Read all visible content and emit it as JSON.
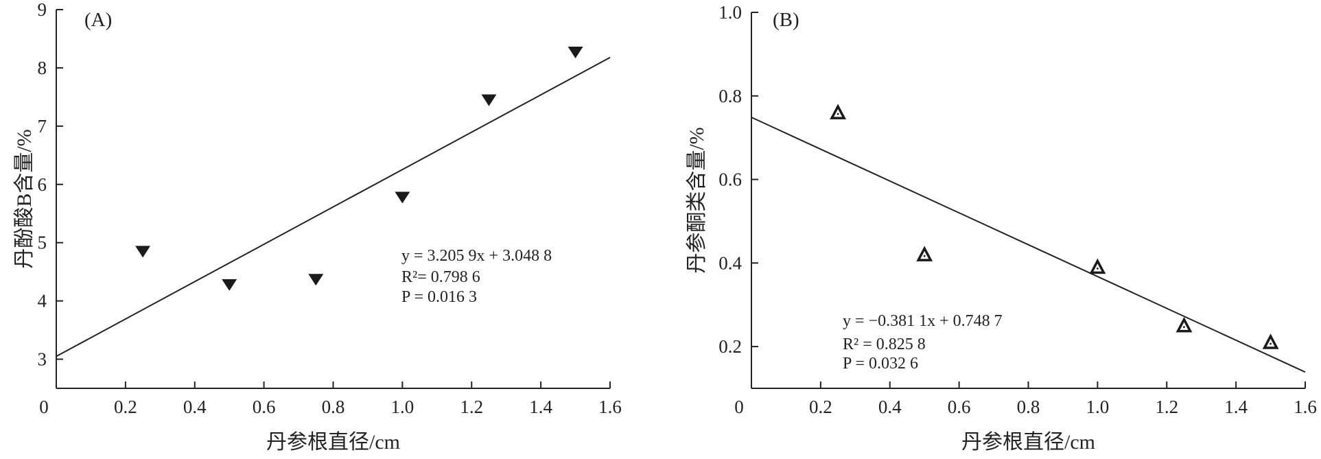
{
  "chart_data": [
    {
      "panel_label": "(A)",
      "type": "scatter",
      "marker": "filled-triangle-down",
      "xlabel": "丹参根直径/cm",
      "ylabel": "丹酚酸B含量/%",
      "xlim": [
        0,
        1.6
      ],
      "ylim": [
        2.5,
        9
      ],
      "xticks": [
        "0",
        "0.2",
        "0.4",
        "0.6",
        "0.8",
        "1.0",
        "1.2",
        "1.4",
        "1.6"
      ],
      "yticks": [
        "3",
        "4",
        "5",
        "6",
        "7",
        "8",
        "9"
      ],
      "series": [
        {
          "x": [
            0.25,
            0.5,
            0.75,
            1.0,
            1.25,
            1.5
          ],
          "y": [
            4.85,
            4.28,
            4.37,
            5.78,
            7.45,
            8.27
          ]
        }
      ],
      "fit": {
        "slope": 3.2059,
        "intercept": 3.0488,
        "x_range": [
          0,
          1.6
        ]
      },
      "equation": [
        "y = 3.205 9x + 3.048 8",
        "R²= 0.798 6",
        "P = 0.016 3"
      ]
    },
    {
      "panel_label": "(B)",
      "type": "scatter",
      "marker": "hollow-triangle-up",
      "xlabel": "丹参根直径/cm",
      "ylabel": "丹参酮类含量/%",
      "xlim": [
        0,
        1.6
      ],
      "ylim": [
        0.1,
        1.0
      ],
      "xticks": [
        "0",
        "0.2",
        "0.4",
        "0.6",
        "0.8",
        "1.0",
        "1.2",
        "1.4",
        "1.6"
      ],
      "yticks": [
        "0.2",
        "0.4",
        "0.6",
        "0.8",
        "1.0"
      ],
      "series": [
        {
          "x": [
            0.25,
            0.5,
            1.0,
            1.25,
            1.5
          ],
          "y": [
            0.76,
            0.42,
            0.39,
            0.25,
            0.21
          ]
        }
      ],
      "fit": {
        "slope": -0.3811,
        "intercept": 0.7487,
        "x_range": [
          0,
          1.6
        ]
      },
      "equation": [
        "y = −0.381 1x + 0.748 7",
        "R² = 0.825 8",
        "P = 0.032 6"
      ]
    }
  ]
}
